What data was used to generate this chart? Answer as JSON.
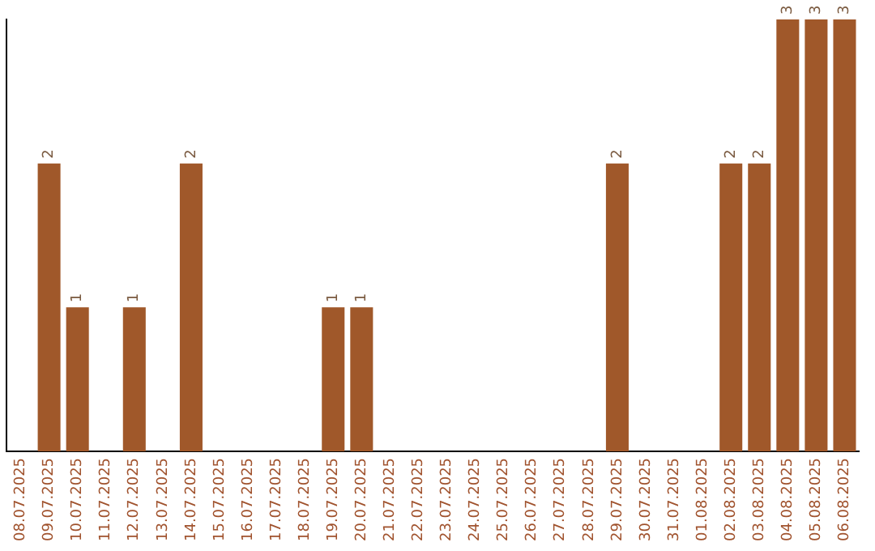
{
  "chart_data": {
    "type": "bar",
    "categories": [
      "08.07.2025",
      "09.07.2025",
      "10.07.2025",
      "11.07.2025",
      "12.07.2025",
      "13.07.2025",
      "14.07.2025",
      "15.07.2025",
      "16.07.2025",
      "17.07.2025",
      "18.07.2025",
      "19.07.2025",
      "20.07.2025",
      "21.07.2025",
      "22.07.2025",
      "23.07.2025",
      "24.07.2025",
      "25.07.2025",
      "26.07.2025",
      "27.07.2025",
      "28.07.2025",
      "29.07.2025",
      "30.07.2025",
      "31.07.2025",
      "01.08.2025",
      "02.08.2025",
      "03.08.2025",
      "04.08.2025",
      "05.08.2025",
      "06.08.2025"
    ],
    "values": [
      0,
      2,
      1,
      0,
      1,
      0,
      2,
      0,
      0,
      0,
      0,
      1,
      1,
      0,
      0,
      0,
      0,
      0,
      0,
      0,
      0,
      2,
      0,
      0,
      0,
      2,
      2,
      3,
      3,
      3
    ],
    "color": "#a0582a",
    "ylim": [
      0,
      3
    ],
    "value_labels": [
      null,
      "2",
      "1",
      null,
      "1",
      null,
      "2",
      null,
      null,
      null,
      null,
      "1",
      "1",
      null,
      null,
      null,
      null,
      null,
      null,
      null,
      null,
      "2",
      null,
      null,
      null,
      "2",
      "2",
      "3",
      "3",
      "3"
    ],
    "grid": false,
    "legend": false,
    "tick_labels": "x"
  }
}
